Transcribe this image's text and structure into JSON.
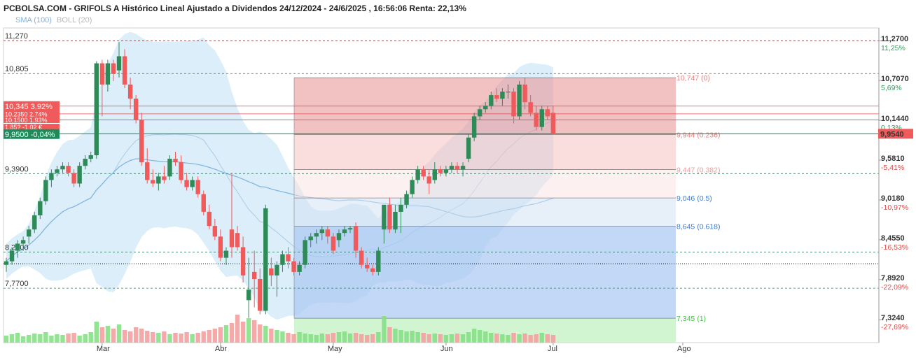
{
  "title": "PCBOLSA.COM - GRIFOLS A Histórico Lineal Ajustado a Dividendos 24/12/2024 - 24/6/2025 , 16:56:06 Renta: 22,13%",
  "legend": {
    "sma": "SMA (100)",
    "boll": "BOLL (20)"
  },
  "colors": {
    "up": "#2e8b57",
    "down": "#f05a5a",
    "sma": "#7fb3e0",
    "boll_fill": "#cfe8f7",
    "price_line": "#1e7c5a",
    "fib_red": "#e88080",
    "fib_blue": "#3a7bd5",
    "fib_green": "#48c248"
  },
  "chart_data": {
    "type": "candlestick",
    "ylim": [
      7.0,
      11.45
    ],
    "y_ticks": [
      {
        "value": 11.27,
        "label": "11,2700",
        "pct": "11,25%",
        "pct_color": "#2e9e5e"
      },
      {
        "value": 10.707,
        "label": "10,7070",
        "pct": "5,69%",
        "pct_color": "#2e9e5e"
      },
      {
        "value": 10.144,
        "label": "10,1440",
        "pct": "0,13%",
        "pct_color": "#2e9e5e"
      },
      {
        "value": 9.581,
        "label": "9,5810",
        "pct": "-5,41%",
        "pct_color": "#e04848"
      },
      {
        "value": 9.018,
        "label": "9,0180",
        "pct": "-10,97%",
        "pct_color": "#e04848"
      },
      {
        "value": 8.455,
        "label": "8,4550",
        "pct": "-16,53%",
        "pct_color": "#e04848"
      },
      {
        "value": 7.892,
        "label": "7,8920",
        "pct": "-22,09%",
        "pct_color": "#e04848"
      },
      {
        "value": 7.324,
        "label": "7,3240",
        "pct": "-27,69%",
        "pct_color": "#e04848"
      }
    ],
    "current_price": {
      "value": 9.954,
      "label": "9,9540"
    },
    "x_ticks": [
      {
        "label": "Mar",
        "index": 17
      },
      {
        "label": "Abr",
        "index": 38
      },
      {
        "label": "May",
        "index": 58
      },
      {
        "label": "Jun",
        "index": 78
      },
      {
        "label": "Jul",
        "index": 97
      },
      {
        "label": "Ago",
        "index": 120
      }
    ],
    "h_levels": [
      {
        "value": 11.27,
        "label": "11,270"
      },
      {
        "value": 10.805,
        "label": "10,805"
      },
      {
        "value": 9.39,
        "label": "9,3900"
      },
      {
        "value": 8.28,
        "label": "8,2800"
      },
      {
        "value": 7.77,
        "label": "7,7700"
      }
    ],
    "price_badges": [
      {
        "value": 10.345,
        "label": "10,345",
        "pct": "3,92%"
      },
      {
        "value": 10.235,
        "label": "10,2350",
        "pct": "2,74%"
      },
      {
        "value": 10.15,
        "label": "10,1500",
        "pct": "1,93%"
      },
      {
        "value": 10.05,
        "label": "1,85?",
        "pct": "-1,02 €"
      },
      {
        "value": 9.95,
        "label": "9,9500",
        "pct": "-0,04%"
      }
    ],
    "fibonacci": [
      {
        "value": 10.747,
        "label": "10,747 (0)"
      },
      {
        "value": 9.944,
        "label": "9,944 (0.236)"
      },
      {
        "value": 9.447,
        "label": "9,447 (0.382)"
      },
      {
        "value": 9.046,
        "label": "9,046 (0.5)"
      },
      {
        "value": 8.645,
        "label": "8,645 (0.618)"
      },
      {
        "value": 7.345,
        "label": "7,345 (1)"
      }
    ],
    "candles": [
      [
        8.1,
        8.2,
        8.0,
        8.15
      ],
      [
        8.15,
        8.35,
        8.1,
        8.3
      ],
      [
        8.3,
        8.45,
        8.2,
        8.4
      ],
      [
        8.4,
        8.5,
        8.3,
        8.45
      ],
      [
        8.5,
        8.65,
        8.4,
        8.6
      ],
      [
        8.6,
        8.85,
        8.55,
        8.8
      ],
      [
        8.8,
        9.05,
        8.75,
        9.0
      ],
      [
        9.0,
        9.35,
        8.95,
        9.3
      ],
      [
        9.3,
        9.45,
        9.2,
        9.4
      ],
      [
        9.4,
        9.5,
        9.35,
        9.45
      ],
      [
        9.45,
        9.55,
        9.4,
        9.5
      ],
      [
        9.5,
        9.55,
        9.35,
        9.4
      ],
      [
        9.4,
        9.45,
        9.2,
        9.25
      ],
      [
        9.25,
        9.55,
        9.2,
        9.5
      ],
      [
        9.5,
        9.65,
        9.45,
        9.6
      ],
      [
        9.6,
        9.7,
        9.55,
        9.65
      ],
      [
        9.65,
        10.98,
        9.6,
        10.95
      ],
      [
        10.95,
        11.0,
        10.2,
        10.65
      ],
      [
        10.65,
        11.0,
        10.55,
        10.95
      ],
      [
        10.95,
        11.0,
        10.7,
        10.8
      ],
      [
        10.85,
        11.25,
        10.75,
        11.05
      ],
      [
        11.05,
        11.15,
        10.6,
        10.65
      ],
      [
        10.65,
        10.75,
        10.3,
        10.45
      ],
      [
        10.45,
        10.5,
        10.1,
        10.15
      ],
      [
        10.15,
        10.25,
        9.5,
        9.55
      ],
      [
        9.55,
        9.75,
        9.25,
        9.3
      ],
      [
        9.3,
        9.45,
        9.2,
        9.25
      ],
      [
        9.25,
        9.4,
        9.15,
        9.35
      ],
      [
        9.35,
        9.5,
        9.25,
        9.3
      ],
      [
        9.35,
        9.65,
        9.3,
        9.6
      ],
      [
        9.6,
        9.7,
        9.5,
        9.55
      ],
      [
        9.55,
        9.65,
        9.25,
        9.3
      ],
      [
        9.3,
        9.4,
        9.15,
        9.2
      ],
      [
        9.2,
        9.35,
        9.15,
        9.3
      ],
      [
        9.3,
        9.35,
        9.05,
        9.1
      ],
      [
        9.1,
        9.15,
        8.8,
        8.85
      ],
      [
        8.85,
        8.95,
        8.6,
        8.65
      ],
      [
        8.65,
        8.75,
        8.45,
        8.5
      ],
      [
        8.5,
        8.6,
        8.15,
        8.2
      ],
      [
        8.2,
        8.35,
        8.1,
        8.3
      ],
      [
        8.6,
        9.4,
        8.2,
        8.35
      ],
      [
        8.55,
        8.65,
        8.3,
        8.35
      ],
      [
        8.35,
        8.5,
        7.85,
        7.95
      ],
      [
        7.6,
        8.2,
        7.35,
        7.75
      ],
      [
        8.0,
        8.3,
        7.5,
        7.9
      ],
      [
        7.9,
        8.05,
        7.4,
        7.45
      ],
      [
        7.45,
        8.95,
        7.4,
        8.9
      ],
      [
        8.05,
        8.2,
        7.8,
        7.95
      ],
      [
        7.95,
        8.15,
        7.65,
        8.1
      ],
      [
        8.1,
        8.3,
        8.0,
        8.25
      ],
      [
        8.25,
        8.35,
        8.05,
        8.15
      ],
      [
        8.15,
        8.2,
        7.95,
        8.0
      ],
      [
        8.0,
        8.15,
        7.95,
        8.1
      ],
      [
        8.1,
        8.5,
        8.05,
        8.45
      ],
      [
        8.45,
        8.55,
        8.35,
        8.5
      ],
      [
        8.5,
        8.6,
        8.4,
        8.55
      ],
      [
        8.55,
        8.65,
        8.45,
        8.6
      ],
      [
        8.6,
        8.65,
        8.4,
        8.5
      ],
      [
        8.5,
        8.55,
        8.25,
        8.3
      ],
      [
        8.45,
        8.6,
        8.35,
        8.55
      ],
      [
        8.55,
        8.65,
        8.5,
        8.6
      ],
      [
        8.6,
        8.65,
        8.55,
        8.62
      ],
      [
        8.65,
        8.7,
        8.2,
        8.3
      ],
      [
        8.3,
        8.35,
        8.05,
        8.1
      ],
      [
        8.1,
        8.2,
        8.0,
        8.05
      ],
      [
        8.05,
        8.1,
        7.95,
        8.0
      ],
      [
        8.0,
        8.35,
        7.95,
        8.3
      ],
      [
        8.6,
        8.95,
        8.4,
        8.95
      ],
      [
        8.95,
        9.05,
        8.55,
        8.6
      ],
      [
        8.6,
        8.95,
        8.55,
        8.85
      ],
      [
        8.85,
        9.05,
        8.55,
        8.95
      ],
      [
        8.95,
        9.15,
        8.9,
        9.1
      ],
      [
        9.1,
        9.35,
        9.05,
        9.3
      ],
      [
        9.3,
        9.5,
        9.25,
        9.45
      ],
      [
        9.45,
        9.5,
        9.3,
        9.35
      ],
      [
        9.35,
        9.45,
        9.1,
        9.25
      ],
      [
        9.3,
        9.55,
        9.25,
        9.45
      ],
      [
        9.45,
        9.5,
        9.35,
        9.4
      ],
      [
        9.4,
        9.5,
        9.35,
        9.45
      ],
      [
        9.45,
        9.55,
        9.4,
        9.5
      ],
      [
        9.5,
        9.55,
        9.4,
        9.45
      ],
      [
        9.45,
        9.55,
        9.35,
        9.5
      ],
      [
        9.6,
        9.95,
        9.55,
        9.9
      ],
      [
        9.9,
        10.25,
        9.85,
        10.2
      ],
      [
        10.2,
        10.35,
        10.15,
        10.3
      ],
      [
        10.3,
        10.4,
        10.25,
        10.35
      ],
      [
        10.35,
        10.55,
        10.3,
        10.5
      ],
      [
        10.5,
        10.6,
        10.4,
        10.45
      ],
      [
        10.45,
        10.6,
        10.35,
        10.55
      ],
      [
        10.55,
        10.65,
        10.45,
        10.55
      ],
      [
        10.55,
        10.6,
        10.1,
        10.2
      ],
      [
        10.2,
        10.7,
        10.15,
        10.65
      ],
      [
        10.65,
        10.75,
        10.3,
        10.4
      ],
      [
        10.4,
        10.5,
        10.2,
        10.25
      ],
      [
        10.25,
        10.35,
        10.0,
        10.05
      ],
      [
        10.05,
        10.35,
        10.0,
        10.3
      ],
      [
        10.3,
        10.35,
        10.15,
        10.2
      ],
      [
        10.25,
        10.35,
        9.95,
        9.95
      ]
    ],
    "volumes": [
      10,
      12,
      14,
      9,
      11,
      13,
      12,
      15,
      10,
      12,
      11,
      13,
      14,
      10,
      12,
      15,
      30,
      22,
      24,
      20,
      26,
      18,
      16,
      22,
      20,
      17,
      15,
      14,
      16,
      12,
      14,
      13,
      15,
      12,
      14,
      16,
      18,
      20,
      22,
      25,
      28,
      40,
      30,
      35,
      32,
      26,
      24,
      20,
      18,
      16,
      14,
      12,
      15,
      13,
      12,
      11,
      13,
      12,
      14,
      15,
      16,
      13,
      14,
      12,
      11,
      12,
      15,
      38,
      22,
      20,
      18,
      16,
      17,
      15,
      14,
      12,
      13,
      12,
      11,
      12,
      13,
      12,
      15,
      20,
      18,
      16,
      14,
      13,
      12,
      11,
      14,
      12,
      13,
      11,
      12,
      14,
      12,
      11
    ]
  }
}
